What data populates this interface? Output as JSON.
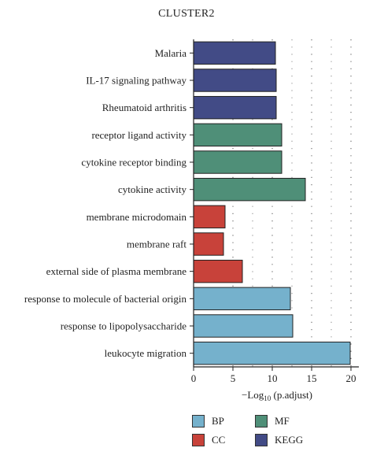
{
  "chart_data": {
    "type": "bar",
    "orientation": "horizontal",
    "title": "CLUSTER2",
    "xlabel": "−Log10 (p.adjust)",
    "xlim": [
      0,
      21
    ],
    "xticks": [
      0,
      5,
      10,
      15,
      20
    ],
    "grid": "dotted vertical",
    "legend_position": "bottom",
    "categories": [
      "Malaria",
      "IL-17 signaling pathway",
      "Rheumatoid arthritis",
      "receptor ligand activity",
      "cytokine receptor binding",
      "cytokine activity",
      "membrane microdomain",
      "membrane raft",
      "external side of plasma membrane",
      "response to molecule of bacterial origin",
      "response to lipopolysaccharide",
      "leukocyte migration"
    ],
    "values": [
      10.4,
      10.5,
      10.5,
      11.2,
      11.2,
      14.2,
      4.0,
      3.8,
      6.2,
      12.3,
      12.6,
      19.9
    ],
    "groups": [
      "KEGG",
      "KEGG",
      "KEGG",
      "MF",
      "MF",
      "MF",
      "CC",
      "CC",
      "CC",
      "BP",
      "BP",
      "BP"
    ],
    "legend": [
      {
        "name": "BP",
        "color": "#75b1cc"
      },
      {
        "name": "CC",
        "color": "#c8423a"
      },
      {
        "name": "MF",
        "color": "#4f8f78"
      },
      {
        "name": "KEGG",
        "color": "#424b86"
      }
    ]
  }
}
